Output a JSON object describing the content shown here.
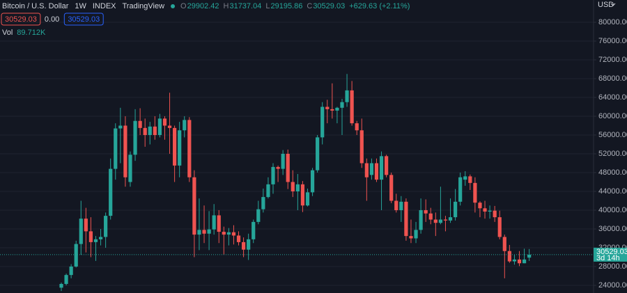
{
  "chart_data": {
    "type": "candlestick",
    "title": "Bitcoin / U.S. Dollar",
    "interval": "1W",
    "source": "INDEX",
    "platform": "TradingView",
    "legend": {
      "open_label": "O",
      "open": 29902.42,
      "high_label": "H",
      "high": 31737.04,
      "low_label": "L",
      "low": 29195.86,
      "close_label": "C",
      "close": 30529.03,
      "change": "+629.63 (+2.11%)"
    },
    "sell_price": 30529.03,
    "spread": "0.00",
    "buy_price": 30529.03,
    "volume_label": "Vol",
    "volume": "89.712K",
    "currency": "USD",
    "last_price": 30529.03,
    "countdown": "3d 14h",
    "up_color": "#26a69a",
    "down_color": "#ef5350",
    "grid": true,
    "ylim": [
      22370,
      84740
    ],
    "yticks": [
      {
        "value": 24000,
        "label": "24000.00"
      },
      {
        "value": 28000,
        "label": "28000.00"
      },
      {
        "value": 32000,
        "label": "32000.00"
      },
      {
        "value": 36000,
        "label": "36000.00"
      },
      {
        "value": 40000,
        "label": "40000.00"
      },
      {
        "value": 44000,
        "label": "44000.00"
      },
      {
        "value": 48000,
        "label": "48000.00"
      },
      {
        "value": 52000,
        "label": "52000.00"
      },
      {
        "value": 56000,
        "label": "56000.00"
      },
      {
        "value": 60000,
        "label": "60000.00"
      },
      {
        "value": 64000,
        "label": "64000.00"
      },
      {
        "value": 68000,
        "label": "68000.00"
      },
      {
        "value": 72000,
        "label": "72000.00"
      },
      {
        "value": 76000,
        "label": "76000.00"
      },
      {
        "value": 80000,
        "label": "80000.00"
      }
    ],
    "open": [
      23500,
      24300,
      26200,
      28000,
      32800,
      38200,
      35500,
      33200,
      33800,
      34300,
      38800,
      48800,
      57400,
      58000,
      46000,
      51800,
      59000,
      57500,
      56000,
      57800,
      56000,
      59500,
      58000,
      57500,
      49500,
      57000,
      59200,
      47000,
      34800,
      35800,
      35000,
      35900,
      38900,
      35400,
      34800,
      35300,
      34600,
      33200,
      31600,
      33800,
      37500,
      40200,
      42800,
      45500,
      49200,
      48800,
      52000,
      46000,
      44000,
      45500,
      41000,
      43800,
      48500,
      55500,
      62000,
      61500,
      61200,
      61800,
      63000,
      65500,
      58500,
      57000,
      50000,
      47500,
      50000,
      46500,
      51500,
      47500,
      42000,
      40000,
      41800,
      34500,
      34000,
      35800,
      40000,
      39300,
      38000,
      37300,
      38000,
      37800,
      38500,
      41800,
      46500,
      47200,
      45800,
      41600,
      40400,
      39700,
      39900,
      38500,
      34300,
      31300,
      29100,
      29500,
      28700,
      29902.42
    ],
    "high": [
      24600,
      26500,
      28500,
      33500,
      42000,
      40500,
      38500,
      34500,
      36000,
      39500,
      51000,
      58500,
      61800,
      60000,
      52500,
      61500,
      61700,
      59500,
      58800,
      60000,
      60500,
      60000,
      65000,
      58000,
      58800,
      60000,
      59800,
      48500,
      42500,
      41000,
      39800,
      41300,
      40000,
      36500,
      36200,
      36800,
      35500,
      34200,
      35000,
      38000,
      42000,
      44600,
      47000,
      50000,
      49500,
      52800,
      52900,
      48500,
      47700,
      46200,
      44600,
      49000,
      56000,
      63000,
      63500,
      67000,
      62000,
      63700,
      69000,
      67500,
      59000,
      59500,
      51000,
      51000,
      51000,
      52500,
      51800,
      48000,
      43500,
      43000,
      42500,
      38000,
      37500,
      42500,
      42300,
      40500,
      39500,
      45000,
      38800,
      42500,
      44500,
      48000,
      48300,
      47600,
      47000,
      41900,
      42000,
      41000,
      40900,
      39900,
      34800,
      32600,
      30500,
      31300,
      31800,
      31737.04
    ],
    "low": [
      22800,
      24000,
      25500,
      27800,
      30500,
      31000,
      30000,
      29200,
      32500,
      32000,
      38000,
      46500,
      50000,
      45000,
      45000,
      50500,
      56000,
      53500,
      54000,
      55000,
      55500,
      55000,
      52000,
      46000,
      47000,
      55500,
      46000,
      30000,
      31500,
      33000,
      31500,
      34800,
      33000,
      30500,
      32500,
      32700,
      32500,
      30000,
      29400,
      33000,
      37000,
      39500,
      42500,
      43500,
      46000,
      47500,
      44500,
      42800,
      40000,
      39600,
      40800,
      43000,
      48000,
      54000,
      58500,
      59500,
      58500,
      56000,
      62000,
      58000,
      56000,
      49000,
      42000,
      46500,
      46000,
      40000,
      47000,
      41500,
      39500,
      37500,
      33500,
      33000,
      33000,
      35000,
      37500,
      37000,
      34500,
      37000,
      35500,
      37300,
      37800,
      41000,
      45200,
      44300,
      39500,
      38500,
      38200,
      38200,
      37500,
      33800,
      25500,
      28800,
      28400,
      28100,
      28700,
      29195.86
    ],
    "close": [
      24300,
      26200,
      28000,
      32800,
      38200,
      35500,
      33200,
      33800,
      34300,
      38800,
      48800,
      57400,
      58000,
      47000,
      51800,
      59000,
      57500,
      56000,
      57800,
      56000,
      59500,
      58000,
      57500,
      49500,
      57000,
      59200,
      47000,
      34800,
      35800,
      35000,
      35900,
      38900,
      35400,
      34800,
      35300,
      34600,
      33200,
      31600,
      33800,
      37500,
      40200,
      42800,
      45500,
      49200,
      48800,
      52000,
      46000,
      44000,
      45500,
      41000,
      43800,
      48500,
      55500,
      62000,
      61500,
      61200,
      61800,
      63000,
      65500,
      58500,
      57000,
      50000,
      47000,
      50000,
      46500,
      51500,
      47500,
      42000,
      40000,
      41800,
      34500,
      34000,
      35800,
      40000,
      39300,
      38000,
      37300,
      38000,
      37800,
      38500,
      41800,
      47000,
      47200,
      45800,
      41600,
      40400,
      39700,
      39900,
      38500,
      34300,
      31300,
      29100,
      29500,
      28700,
      29500,
      30529.03
    ]
  }
}
